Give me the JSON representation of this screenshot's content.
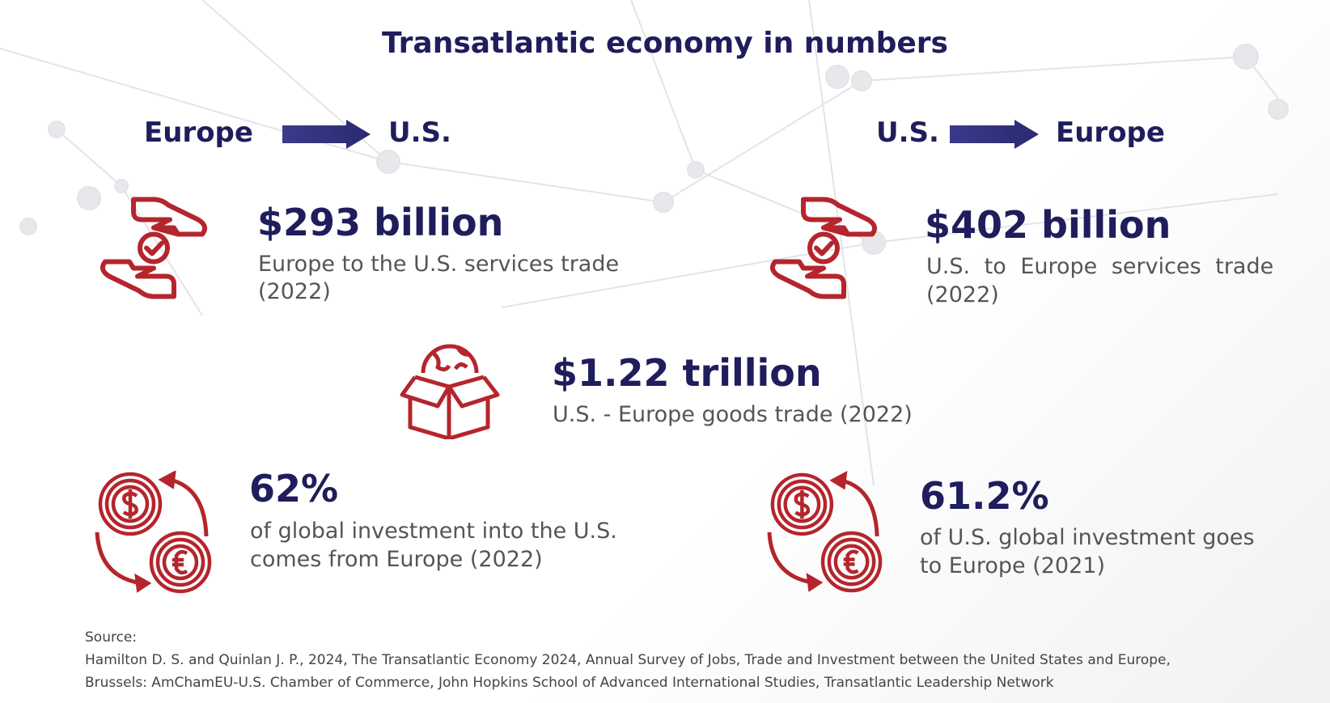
{
  "title": "Transatlantic economy in numbers",
  "flows": [
    {
      "from": "Europe",
      "to": "U.S."
    },
    {
      "from": "U.S.",
      "to": "Europe"
    }
  ],
  "stats": [
    {
      "value": "$293 billion",
      "description": [
        "Europe to the U.S. services trade",
        "(2022)"
      ]
    },
    {
      "value": "$402 billion",
      "description": [
        "U.S. to Europe services trade",
        "(2022)"
      ]
    },
    {
      "value": "$1.22 trillion",
      "description": [
        "U.S. - Europe goods trade (2022)"
      ]
    },
    {
      "value": "62%",
      "description": [
        "of global investment into the U.S.",
        "comes from Europe (2022)"
      ]
    },
    {
      "value": "61.2%",
      "description": [
        "of U.S. global investment goes",
        "to Europe (2021)"
      ]
    }
  ],
  "source": {
    "label": "Source:",
    "lines": [
      "Hamilton D. S. and Quinlan J. P., 2024, The Transatlantic Economy 2024, Annual Survey of Jobs, Trade and Investment between the United States and Europe,",
      "Brussels: AmChamEU-U.S. Chamber of Commerce, John Hopkins School of Advanced International Studies, Transatlantic Leadership Network"
    ]
  }
}
